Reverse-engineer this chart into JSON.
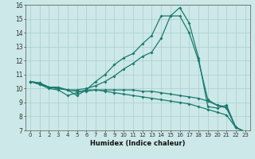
{
  "xlabel": "Humidex (Indice chaleur)",
  "x": [
    0,
    1,
    2,
    3,
    4,
    5,
    6,
    7,
    8,
    9,
    10,
    11,
    12,
    13,
    14,
    15,
    16,
    17,
    18,
    19,
    20,
    21,
    22,
    23
  ],
  "line1": [
    10.5,
    10.4,
    10.1,
    10.1,
    9.9,
    9.5,
    9.9,
    10.5,
    11.0,
    11.7,
    12.2,
    12.5,
    13.2,
    13.8,
    15.2,
    15.2,
    15.8,
    14.7,
    12.2,
    8.7,
    8.6,
    8.8,
    7.2,
    6.9
  ],
  "line2": [
    10.5,
    10.4,
    10.1,
    10.0,
    9.9,
    9.9,
    10.0,
    10.2,
    10.5,
    10.9,
    11.4,
    11.8,
    12.3,
    12.6,
    13.6,
    15.2,
    15.2,
    14.0,
    12.0,
    9.2,
    8.8,
    8.7,
    7.2,
    6.9
  ],
  "line3": [
    10.5,
    10.3,
    10.1,
    10.0,
    9.9,
    9.8,
    9.8,
    9.9,
    9.9,
    9.9,
    9.9,
    9.9,
    9.8,
    9.8,
    9.7,
    9.6,
    9.5,
    9.4,
    9.3,
    9.1,
    8.8,
    8.6,
    7.2,
    6.9
  ],
  "line4": [
    10.5,
    10.3,
    10.0,
    9.9,
    9.5,
    9.7,
    9.9,
    9.9,
    9.8,
    9.7,
    9.6,
    9.5,
    9.4,
    9.3,
    9.2,
    9.1,
    9.0,
    8.9,
    8.7,
    8.5,
    8.3,
    8.1,
    7.2,
    6.9
  ],
  "line_color": "#1a7a6e",
  "bg_color": "#cce8e8",
  "grid_color": "#aacece",
  "ylim": [
    7,
    16
  ],
  "yticks": [
    7,
    8,
    9,
    10,
    11,
    12,
    13,
    14,
    15,
    16
  ],
  "xticks": [
    0,
    1,
    2,
    3,
    4,
    5,
    6,
    7,
    8,
    9,
    10,
    11,
    12,
    13,
    14,
    15,
    16,
    17,
    18,
    19,
    20,
    21,
    22,
    23
  ]
}
